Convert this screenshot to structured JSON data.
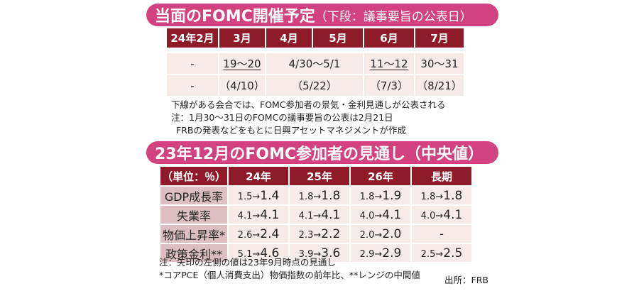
{
  "banner1": {
    "title": "当面のFOMC開催予定",
    "subtitle": "（下段：議事要旨の公表日）"
  },
  "schedule": {
    "headers": [
      "24年2月",
      "3月",
      "4月",
      "5月",
      "6月",
      "7月"
    ],
    "meetings": {
      "feb": "-",
      "mar": "19〜20",
      "apr_may": "4/30〜5/1",
      "jun": "11〜12",
      "jul": "30〜31"
    },
    "minutes": [
      "-",
      "（4/10）",
      "（5/22）",
      "（7/3）",
      "（8/21）"
    ],
    "underlined_meetings": [
      "3月",
      "6月"
    ]
  },
  "notes_top": [
    "下線がある会合では、FOMC参加者の景気・金利見通しが公表される",
    "注：1月30〜31日のFOMCの議事要旨の公表は2月21日",
    "FRBの発表などをもとに日興アセットマネジメントが作成"
  ],
  "banner2": {
    "title": "23年12月のFOMC参加者の見通し（中央値）"
  },
  "projections": {
    "headers": [
      "（単位：％）",
      "24年",
      "25年",
      "26年",
      "長期"
    ],
    "rows": [
      {
        "label": "GDP成長率",
        "cells": [
          {
            "a": "1.5",
            "b": "1.4"
          },
          {
            "a": "1.8",
            "b": "1.8"
          },
          {
            "a": "1.8",
            "b": "1.9"
          },
          {
            "a": "1.8",
            "b": "1.8"
          }
        ]
      },
      {
        "label": "失業率",
        "cells": [
          {
            "a": "4.1",
            "b": "4.1"
          },
          {
            "a": "4.1",
            "b": "4.1"
          },
          {
            "a": "4.0",
            "b": "4.1"
          },
          {
            "a": "4.0",
            "b": "4.1"
          }
        ]
      },
      {
        "label": "物価上昇率*",
        "cells": [
          {
            "a": "2.6",
            "b": "2.4"
          },
          {
            "a": "2.3",
            "b": "2.2"
          },
          {
            "a": "2.0",
            "b": "2.0"
          },
          {
            "dash": "-"
          }
        ]
      },
      {
        "label": "政策金利**",
        "cells": [
          {
            "a": "5.1",
            "b": "4.6"
          },
          {
            "a": "3.9",
            "b": "3.6"
          },
          {
            "a": "2.9",
            "b": "2.9"
          },
          {
            "a": "2.5",
            "b": "2.5"
          }
        ]
      }
    ],
    "arrow": "→"
  },
  "notes_bottom": [
    "注：矢印の左側の値は23年9月時点の見通し",
    "*コアPCE（個人消費支出）物価指数の前年比、**レンジの中間値"
  ],
  "source": "出所：FRB",
  "colors": {
    "banner": "#d2427e",
    "header": "#8f1b2a",
    "cell": "#f7ebe7",
    "label_cell": "#dcbfc2"
  }
}
